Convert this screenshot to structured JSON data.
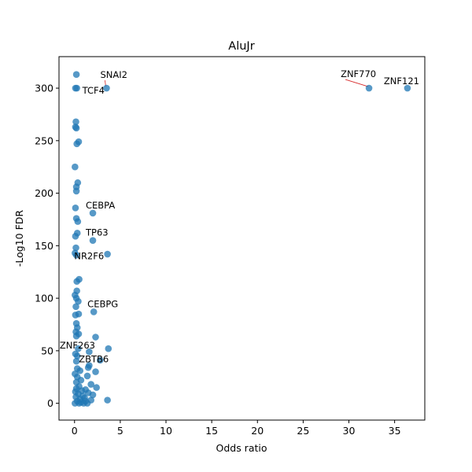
{
  "chart_data": {
    "type": "scatter",
    "title": "AluJr",
    "xlabel": "Odds ratio",
    "ylabel": "-Log10 FDR",
    "xlim": [
      -1.7,
      38.3
    ],
    "ylim": [
      -16,
      330
    ],
    "xticks": [
      0,
      5,
      10,
      15,
      20,
      25,
      30,
      35
    ],
    "yticks": [
      0,
      50,
      100,
      150,
      200,
      250,
      300
    ],
    "grid": false,
    "legend": "none",
    "colors": {
      "point": "#1f77b4",
      "leader": "#d62728"
    },
    "series": [
      {
        "points": [
          [
            0.2,
            313
          ],
          [
            0.1,
            300
          ],
          [
            0.25,
            300
          ],
          [
            3.5,
            300
          ],
          [
            32.2,
            300
          ],
          [
            36.4,
            300
          ],
          [
            0.15,
            268
          ],
          [
            0.1,
            263
          ],
          [
            0.2,
            262
          ],
          [
            0.45,
            249
          ],
          [
            0.25,
            247
          ],
          [
            0.05,
            225
          ],
          [
            0.35,
            210
          ],
          [
            0.2,
            206
          ],
          [
            0.2,
            202
          ],
          [
            2.0,
            181
          ],
          [
            0.1,
            186
          ],
          [
            0.2,
            176
          ],
          [
            0.35,
            173
          ],
          [
            0.3,
            162
          ],
          [
            0.1,
            159
          ],
          [
            2.0,
            155
          ],
          [
            0.15,
            148
          ],
          [
            3.6,
            142
          ],
          [
            0.05,
            143
          ],
          [
            0.2,
            141
          ],
          [
            0.5,
            118
          ],
          [
            0.25,
            116
          ],
          [
            0.25,
            107
          ],
          [
            0.05,
            103
          ],
          [
            0.2,
            100
          ],
          [
            0.4,
            97
          ],
          [
            0.15,
            92
          ],
          [
            2.1,
            87
          ],
          [
            0.45,
            85
          ],
          [
            0.1,
            84
          ],
          [
            0.2,
            76
          ],
          [
            0.3,
            72
          ],
          [
            0.15,
            68
          ],
          [
            0.45,
            66
          ],
          [
            0.2,
            64
          ],
          [
            2.3,
            63
          ],
          [
            3.7,
            52
          ],
          [
            0.4,
            52
          ],
          [
            1.6,
            49
          ],
          [
            0.1,
            47
          ],
          [
            0.3,
            45
          ],
          [
            2.8,
            41
          ],
          [
            0.2,
            40
          ],
          [
            1.6,
            36
          ],
          [
            1.5,
            34
          ],
          [
            0.3,
            33
          ],
          [
            0.6,
            31
          ],
          [
            2.3,
            30
          ],
          [
            0.05,
            28
          ],
          [
            1.4,
            26
          ],
          [
            0.3,
            25
          ],
          [
            0.7,
            22
          ],
          [
            0.2,
            20
          ],
          [
            1.8,
            18
          ],
          [
            0.5,
            16
          ],
          [
            2.4,
            15
          ],
          [
            0.2,
            14
          ],
          [
            1.2,
            13
          ],
          [
            0.8,
            12
          ],
          [
            0.1,
            11
          ],
          [
            1.5,
            10
          ],
          [
            0.4,
            9
          ],
          [
            2.0,
            8
          ],
          [
            0.9,
            7
          ],
          [
            0.15,
            6
          ],
          [
            1.1,
            5
          ],
          [
            0.6,
            4
          ],
          [
            3.6,
            3
          ],
          [
            1.8,
            3
          ],
          [
            0.3,
            2
          ],
          [
            1.2,
            2
          ],
          [
            0.7,
            1
          ],
          [
            0.05,
            0
          ],
          [
            0.5,
            0
          ],
          [
            1.0,
            0
          ],
          [
            1.4,
            0
          ]
        ]
      }
    ],
    "annotations": [
      {
        "text": "SNAI2",
        "x": 3.5,
        "y": 300
      },
      {
        "text": "TCF4",
        "x": 0.25,
        "y": 300
      },
      {
        "text": "ZNF770",
        "x": 32.2,
        "y": 300
      },
      {
        "text": "ZNF121",
        "x": 36.4,
        "y": 300
      },
      {
        "text": "CEBPA",
        "x": 2.0,
        "y": 181
      },
      {
        "text": "TP63",
        "x": 2.0,
        "y": 155
      },
      {
        "text": "NR2F6",
        "x": 0.05,
        "y": 143
      },
      {
        "text": "CEBPG",
        "x": 2.1,
        "y": 87
      },
      {
        "text": "ZNF263",
        "x": 0.1,
        "y": 47
      },
      {
        "text": "ZBTB6",
        "x": 0.3,
        "y": 45
      }
    ]
  }
}
